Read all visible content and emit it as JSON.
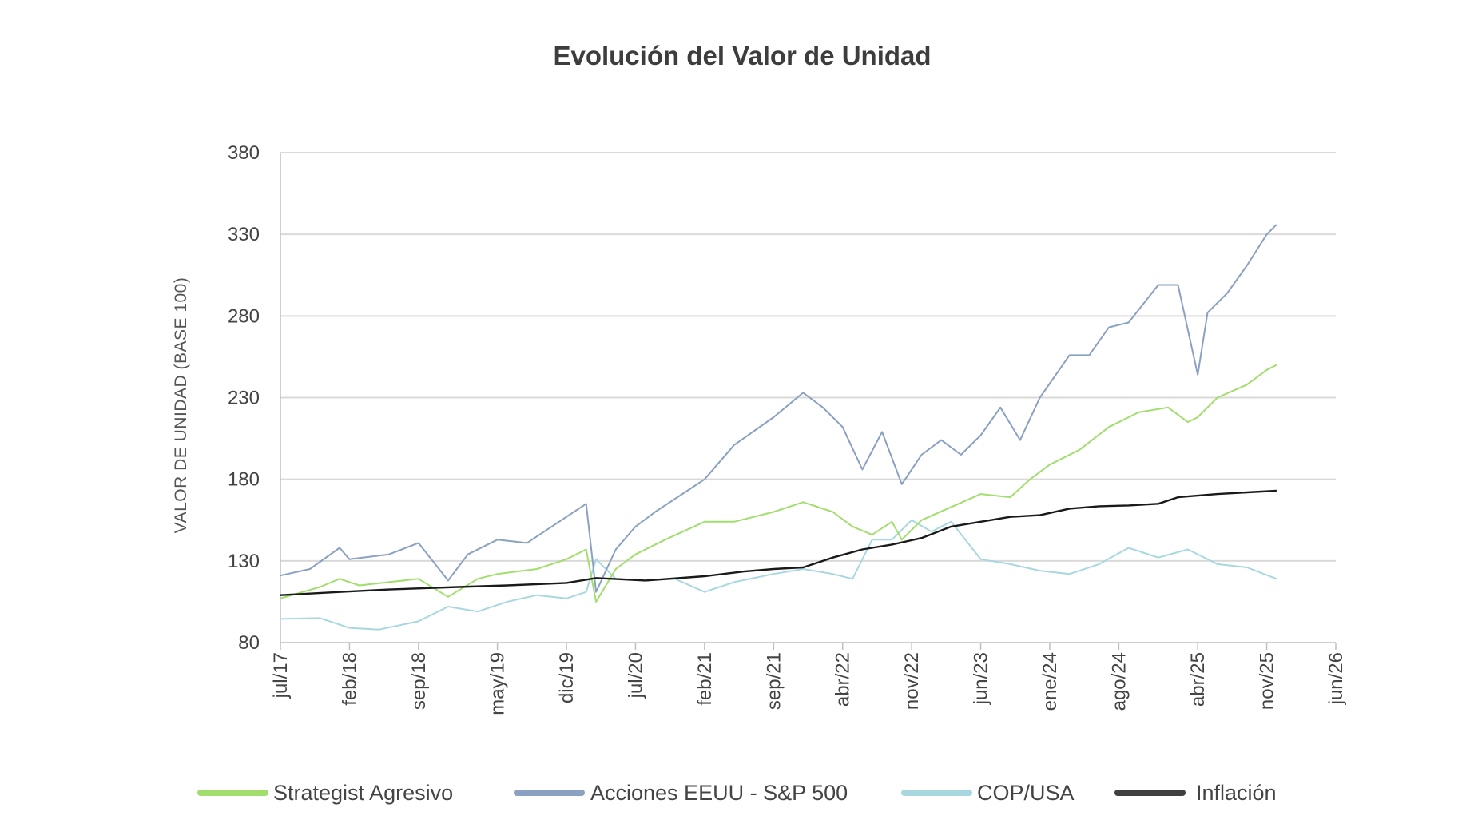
{
  "chart_data": {
    "type": "line",
    "title": "Evolución del Valor de Unidad",
    "xlabel": "",
    "ylabel": "VALOR DE UNIDAD (BASE 100)",
    "ylim": [
      80,
      380
    ],
    "yticks": [
      "80",
      "130",
      "180",
      "230",
      "280",
      "330",
      "380"
    ],
    "xlim": [
      "2017-07",
      "2026-06"
    ],
    "xticks": [
      {
        "date": "2017-07",
        "label": "jul/17"
      },
      {
        "date": "2018-02",
        "label": "feb/18"
      },
      {
        "date": "2018-09",
        "label": "sep/18"
      },
      {
        "date": "2019-05",
        "label": "may/19"
      },
      {
        "date": "2019-12",
        "label": "dic/19"
      },
      {
        "date": "2020-07",
        "label": "jul/20"
      },
      {
        "date": "2021-02",
        "label": "feb/21"
      },
      {
        "date": "2021-09",
        "label": "sep/21"
      },
      {
        "date": "2022-04",
        "label": "abr/22"
      },
      {
        "date": "2022-11",
        "label": "nov/22"
      },
      {
        "date": "2023-06",
        "label": "jun/23"
      },
      {
        "date": "2024-01",
        "label": "ene/24"
      },
      {
        "date": "2024-08",
        "label": "ago/24"
      },
      {
        "date": "2025-04",
        "label": "abr/25"
      },
      {
        "date": "2025-11",
        "label": "nov/25"
      },
      {
        "date": "2026-06",
        "label": "jun/26"
      }
    ],
    "grid": "horizontal",
    "legend": "bottom",
    "series": [
      {
        "name": "Strategist Agresivo",
        "color": "#a1de6e",
        "points": [
          [
            "2017-07",
            107
          ],
          [
            "2017-11",
            114
          ],
          [
            "2018-01",
            119
          ],
          [
            "2018-03",
            115
          ],
          [
            "2018-09",
            119
          ],
          [
            "2018-12",
            108
          ],
          [
            "2019-03",
            119
          ],
          [
            "2019-05",
            122
          ],
          [
            "2019-09",
            125
          ],
          [
            "2019-12",
            131
          ],
          [
            "2020-02",
            137
          ],
          [
            "2020-03",
            105
          ],
          [
            "2020-05",
            125
          ],
          [
            "2020-07",
            134
          ],
          [
            "2020-10",
            143
          ],
          [
            "2021-02",
            154
          ],
          [
            "2021-05",
            154
          ],
          [
            "2021-09",
            160
          ],
          [
            "2021-12",
            166
          ],
          [
            "2022-03",
            160
          ],
          [
            "2022-05",
            151
          ],
          [
            "2022-07",
            146
          ],
          [
            "2022-09",
            154
          ],
          [
            "2022-10",
            143
          ],
          [
            "2022-12",
            155
          ],
          [
            "2023-03",
            163
          ],
          [
            "2023-06",
            171
          ],
          [
            "2023-09",
            169
          ],
          [
            "2023-11",
            180
          ],
          [
            "2024-01",
            189
          ],
          [
            "2024-04",
            198
          ],
          [
            "2024-07",
            212
          ],
          [
            "2024-10",
            221
          ],
          [
            "2025-01",
            224
          ],
          [
            "2025-03",
            215
          ],
          [
            "2025-04",
            218
          ],
          [
            "2025-06",
            230
          ],
          [
            "2025-09",
            238
          ],
          [
            "2025-11",
            247
          ],
          [
            "2025-12",
            250
          ]
        ]
      },
      {
        "name": "Acciones EEUU - S&P 500",
        "color": "#8aa1c1",
        "points": [
          [
            "2017-07",
            121
          ],
          [
            "2017-10",
            125
          ],
          [
            "2018-01",
            138
          ],
          [
            "2018-02",
            131
          ],
          [
            "2018-06",
            134
          ],
          [
            "2018-09",
            141
          ],
          [
            "2018-12",
            118
          ],
          [
            "2019-02",
            134
          ],
          [
            "2019-05",
            143
          ],
          [
            "2019-08",
            141
          ],
          [
            "2019-12",
            157
          ],
          [
            "2020-02",
            165
          ],
          [
            "2020-03",
            111
          ],
          [
            "2020-05",
            137
          ],
          [
            "2020-07",
            151
          ],
          [
            "2020-09",
            160
          ],
          [
            "2020-12",
            172
          ],
          [
            "2021-02",
            180
          ],
          [
            "2021-05",
            201
          ],
          [
            "2021-09",
            218
          ],
          [
            "2021-12",
            233
          ],
          [
            "2022-02",
            224
          ],
          [
            "2022-04",
            212
          ],
          [
            "2022-06",
            186
          ],
          [
            "2022-08",
            209
          ],
          [
            "2022-10",
            177
          ],
          [
            "2022-12",
            195
          ],
          [
            "2023-02",
            204
          ],
          [
            "2023-04",
            195
          ],
          [
            "2023-06",
            207
          ],
          [
            "2023-08",
            224
          ],
          [
            "2023-10",
            204
          ],
          [
            "2023-12",
            230
          ],
          [
            "2024-03",
            256
          ],
          [
            "2024-05",
            256
          ],
          [
            "2024-07",
            273
          ],
          [
            "2024-09",
            276
          ],
          [
            "2024-12",
            299
          ],
          [
            "2025-02",
            299
          ],
          [
            "2025-04",
            244
          ],
          [
            "2025-05",
            282
          ],
          [
            "2025-07",
            294
          ],
          [
            "2025-09",
            311
          ],
          [
            "2025-11",
            330
          ],
          [
            "2025-12",
            336
          ]
        ]
      },
      {
        "name": "COP/USA",
        "color": "#a7d8e0",
        "points": [
          [
            "2017-07",
            94.5
          ],
          [
            "2017-11",
            95
          ],
          [
            "2018-02",
            89
          ],
          [
            "2018-05",
            88
          ],
          [
            "2018-09",
            93
          ],
          [
            "2018-12",
            102
          ],
          [
            "2019-03",
            99
          ],
          [
            "2019-06",
            105
          ],
          [
            "2019-09",
            109
          ],
          [
            "2019-12",
            107
          ],
          [
            "2020-02",
            111
          ],
          [
            "2020-03",
            131
          ],
          [
            "2020-05",
            119
          ],
          [
            "2020-08",
            118
          ],
          [
            "2020-11",
            119
          ],
          [
            "2021-02",
            111
          ],
          [
            "2021-05",
            117
          ],
          [
            "2021-09",
            122
          ],
          [
            "2021-12",
            125
          ],
          [
            "2022-03",
            122
          ],
          [
            "2022-05",
            119
          ],
          [
            "2022-07",
            143
          ],
          [
            "2022-09",
            143
          ],
          [
            "2022-11",
            155
          ],
          [
            "2023-01",
            148
          ],
          [
            "2023-03",
            154
          ],
          [
            "2023-06",
            131
          ],
          [
            "2023-09",
            128
          ],
          [
            "2023-12",
            124
          ],
          [
            "2024-03",
            122
          ],
          [
            "2024-06",
            128
          ],
          [
            "2024-09",
            138
          ],
          [
            "2024-12",
            132
          ],
          [
            "2025-03",
            137
          ],
          [
            "2025-06",
            128
          ],
          [
            "2025-09",
            126
          ],
          [
            "2025-12",
            119
          ]
        ]
      },
      {
        "name": "Inflación",
        "color": "#1a1a1a",
        "legend_color": "#404040",
        "points": [
          [
            "2017-07",
            109
          ],
          [
            "2018-01",
            111
          ],
          [
            "2018-06",
            112.5
          ],
          [
            "2019-01",
            114
          ],
          [
            "2019-06",
            115
          ],
          [
            "2019-12",
            116.5
          ],
          [
            "2020-03",
            119.5
          ],
          [
            "2020-08",
            118
          ],
          [
            "2021-02",
            120.6
          ],
          [
            "2021-06",
            123.5
          ],
          [
            "2021-09",
            125
          ],
          [
            "2021-12",
            126
          ],
          [
            "2022-03",
            132
          ],
          [
            "2022-06",
            137
          ],
          [
            "2022-09",
            140
          ],
          [
            "2022-12",
            144
          ],
          [
            "2023-03",
            151
          ],
          [
            "2023-06",
            154
          ],
          [
            "2023-09",
            157
          ],
          [
            "2023-12",
            158
          ],
          [
            "2024-03",
            162
          ],
          [
            "2024-06",
            163.5
          ],
          [
            "2024-09",
            164
          ],
          [
            "2024-12",
            165
          ],
          [
            "2025-02",
            169
          ],
          [
            "2025-06",
            171
          ],
          [
            "2025-09",
            172
          ],
          [
            "2025-12",
            173
          ]
        ]
      }
    ]
  }
}
